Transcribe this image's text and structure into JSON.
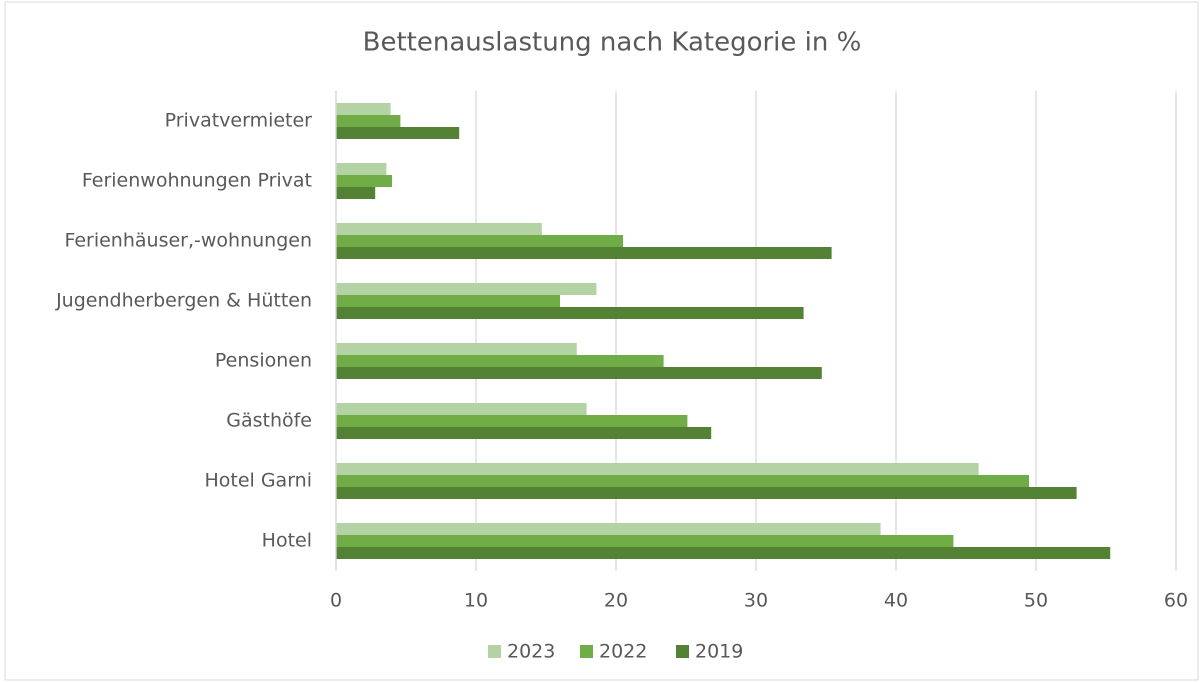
{
  "chart_data": {
    "type": "barh",
    "title": "Bettenauslastung nach Kategorie in %",
    "categories": [
      "Privatvermieter",
      "Ferienwohnungen Privat",
      "Ferienhäuser,-wohnungen",
      "Jugendherbergen & Hütten",
      "Pensionen",
      "Gästhöfe",
      "Hotel Garni",
      "Hotel"
    ],
    "series": [
      {
        "name": "2023",
        "color": "#b3d3a5",
        "values": [
          3.9,
          3.6,
          14.7,
          18.6,
          17.2,
          17.9,
          45.9,
          38.9
        ]
      },
      {
        "name": "2022",
        "color": "#70ad47",
        "values": [
          4.6,
          4.0,
          20.5,
          16.0,
          23.4,
          25.1,
          49.5,
          44.1
        ]
      },
      {
        "name": "2019",
        "color": "#548235",
        "values": [
          8.8,
          2.8,
          35.4,
          33.4,
          34.7,
          26.8,
          52.9,
          55.3
        ]
      }
    ],
    "xlim": [
      0,
      60
    ],
    "xticks": [
      0,
      10,
      20,
      30,
      40,
      50,
      60
    ],
    "grid": true,
    "legend": "bottom"
  }
}
